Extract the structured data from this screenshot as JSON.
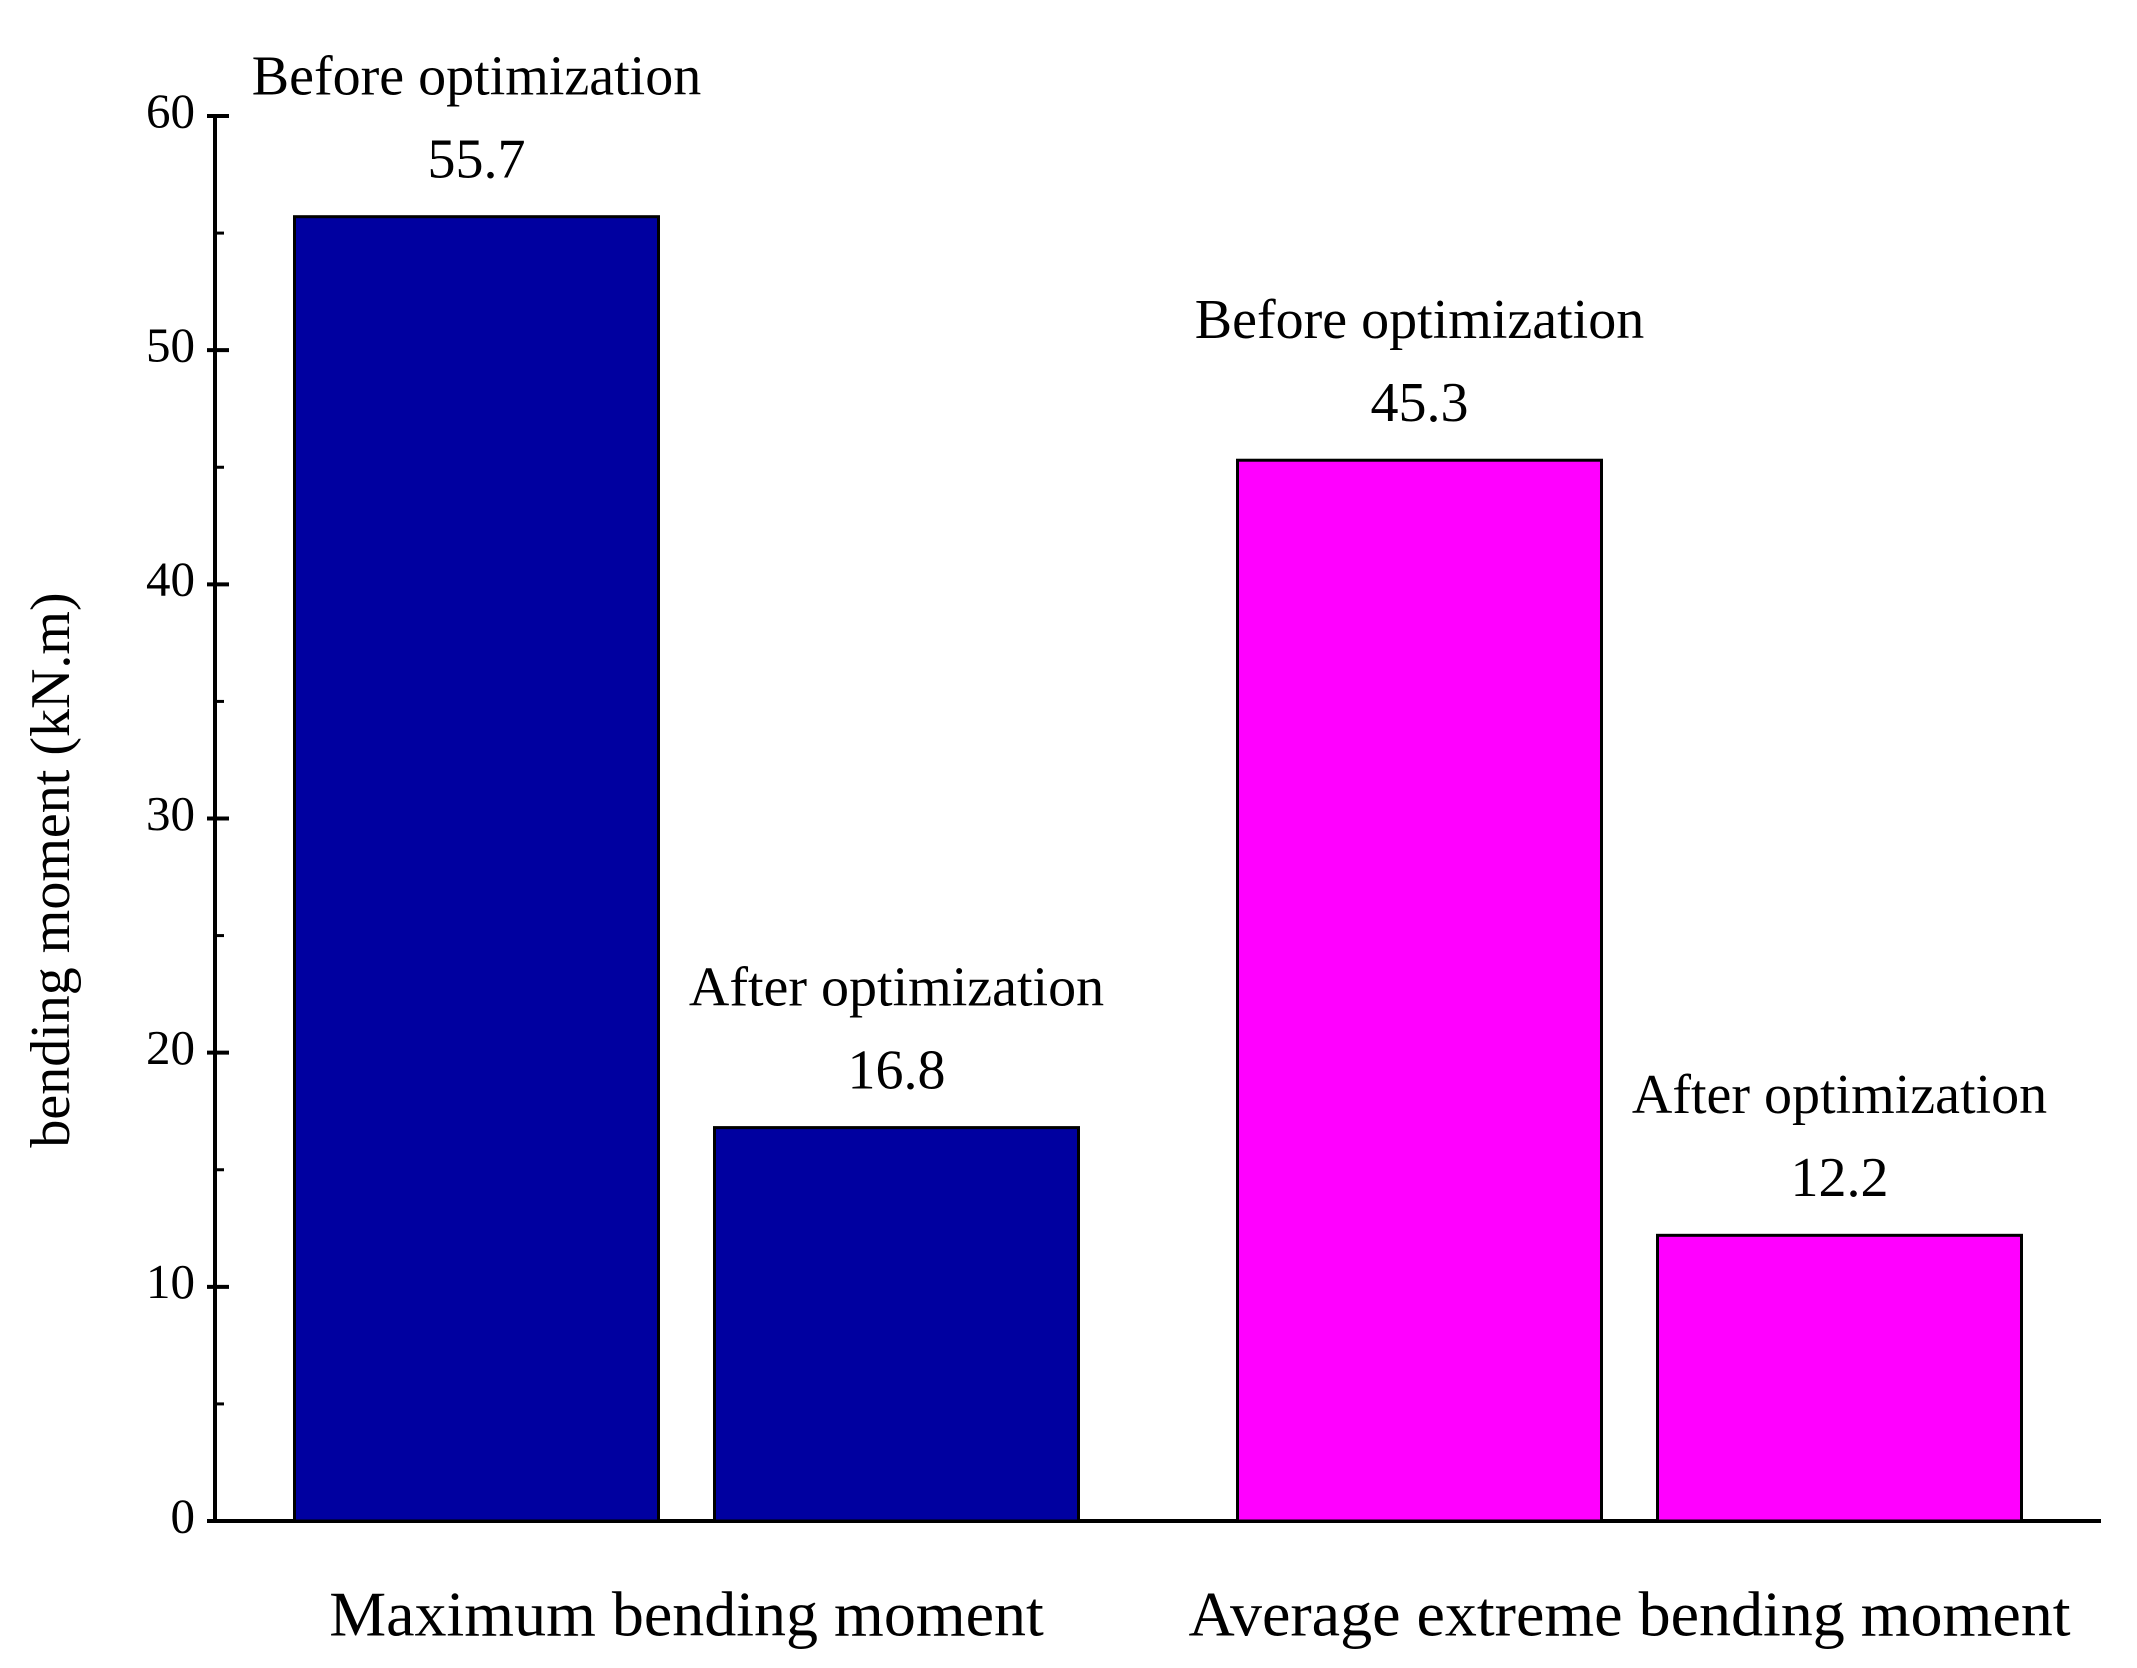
{
  "chart_data": {
    "type": "bar",
    "y_label": "bending moment (kN.m)",
    "categories": [
      "Maximum bending moment",
      "Average extreme bending moment"
    ],
    "series": [
      {
        "name": "Before optimization",
        "colors": [
          "#0000a0",
          "#ff00ff"
        ],
        "values": [
          55.7,
          45.3
        ]
      },
      {
        "name": "After optimization",
        "colors": [
          "#0000a0",
          "#ff00ff"
        ],
        "values": [
          16.8,
          12.2
        ]
      }
    ],
    "ylim": [
      0,
      60
    ],
    "yticks": [
      0,
      10,
      20,
      30,
      40,
      50,
      60
    ],
    "minor_yticks": [
      5,
      15,
      25,
      35,
      45,
      55
    ],
    "grid": false
  }
}
